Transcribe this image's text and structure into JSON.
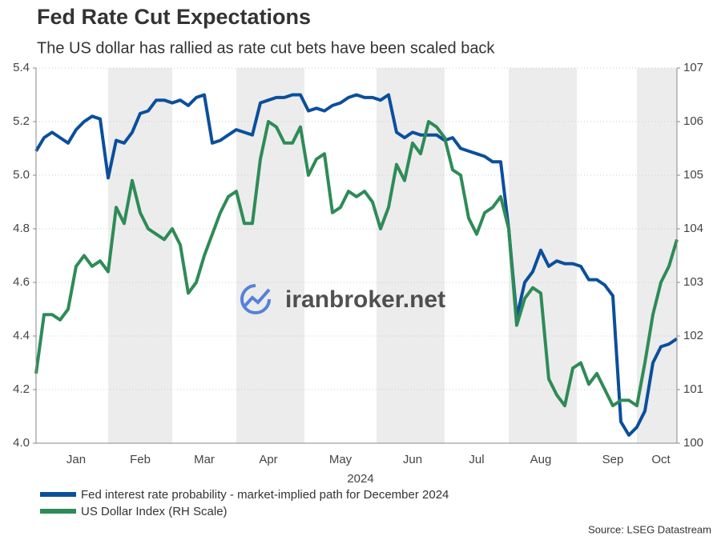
{
  "chart_data": {
    "type": "line",
    "title": "Fed Rate Cut Expectations",
    "subtitle": "The US dollar has rallied as rate cut bets have been scaled back",
    "xlabel": "2024",
    "source": "Source: LSEG Datastream",
    "watermark": "iranbroker.net",
    "categories": [
      null,
      null,
      null,
      null,
      null,
      "Jan",
      null,
      null,
      null,
      null,
      null,
      null,
      null,
      "Feb",
      null,
      null,
      null,
      null,
      null,
      null,
      null,
      "Mar",
      null,
      null,
      null,
      null,
      null,
      null,
      null,
      "Apr",
      null,
      null,
      null,
      null,
      null,
      null,
      null,
      null,
      "May",
      null,
      null,
      null,
      null,
      null,
      null,
      null,
      null,
      "Jun",
      null,
      null,
      null,
      null,
      null,
      null,
      null,
      "Jul",
      null,
      null,
      null,
      null,
      null,
      null,
      null,
      "Aug",
      null,
      null,
      null,
      null,
      null,
      null,
      null,
      null,
      "Sep",
      null,
      null,
      null,
      null,
      null,
      "Oct",
      null,
      null
    ],
    "series": [
      {
        "name": "Fed interest rate probability - market-implied path for December 2024",
        "color": "#0b4f9c",
        "axis": "y",
        "values": [
          5.09,
          5.14,
          5.16,
          5.14,
          5.12,
          5.17,
          5.2,
          5.22,
          5.21,
          4.99,
          5.13,
          5.12,
          5.16,
          5.23,
          5.24,
          5.28,
          5.28,
          5.27,
          5.28,
          5.26,
          5.29,
          5.3,
          5.12,
          5.13,
          5.15,
          5.17,
          5.16,
          5.15,
          5.27,
          5.28,
          5.29,
          5.29,
          5.3,
          5.3,
          5.24,
          5.25,
          5.24,
          5.26,
          5.27,
          5.29,
          5.3,
          5.29,
          5.29,
          5.28,
          5.3,
          5.16,
          5.14,
          5.16,
          5.15,
          5.15,
          5.15,
          5.13,
          5.14,
          5.1,
          5.09,
          5.08,
          5.07,
          5.05,
          5.05,
          4.8,
          4.47,
          4.6,
          4.64,
          4.72,
          4.66,
          4.68,
          4.67,
          4.67,
          4.66,
          4.61,
          4.61,
          4.59,
          4.55,
          4.08,
          4.03,
          4.06,
          4.12,
          4.3,
          4.36,
          4.37,
          4.39
        ]
      },
      {
        "name": "US Dollar Index (RH Scale)",
        "color": "#2e8b57",
        "axis": "y2",
        "values": [
          101.3,
          102.4,
          102.4,
          102.3,
          102.5,
          103.3,
          103.5,
          103.3,
          103.4,
          103.2,
          104.4,
          104.1,
          104.9,
          104.3,
          104.0,
          103.9,
          103.8,
          104.0,
          103.7,
          102.8,
          103.0,
          103.5,
          103.9,
          104.3,
          104.6,
          104.7,
          104.1,
          104.1,
          105.3,
          106.0,
          105.9,
          105.6,
          105.6,
          105.9,
          105.0,
          105.3,
          105.4,
          104.3,
          104.4,
          104.7,
          104.6,
          104.7,
          104.5,
          104.0,
          104.4,
          105.2,
          104.9,
          105.6,
          105.4,
          106.0,
          105.9,
          105.7,
          105.1,
          105.0,
          104.2,
          103.9,
          104.3,
          104.4,
          104.6,
          104.0,
          102.2,
          102.7,
          102.9,
          102.8,
          101.2,
          100.9,
          100.7,
          101.4,
          101.5,
          101.1,
          101.3,
          101.0,
          100.7,
          100.8,
          100.8,
          100.7,
          101.5,
          102.4,
          103.0,
          103.3,
          103.8
        ]
      }
    ],
    "ylim": [
      4.0,
      5.4
    ],
    "yticks": [
      {
        "value": 4.0,
        "label": "4.0"
      },
      4.2,
      4.4,
      4.6,
      4.8,
      {
        "value": 5.0,
        "label": "5.0"
      },
      5.2,
      5.4
    ],
    "y2lim": [
      100,
      107
    ],
    "y2ticks": [
      100,
      101,
      102,
      103,
      104,
      105,
      106,
      107
    ],
    "grid": true
  }
}
